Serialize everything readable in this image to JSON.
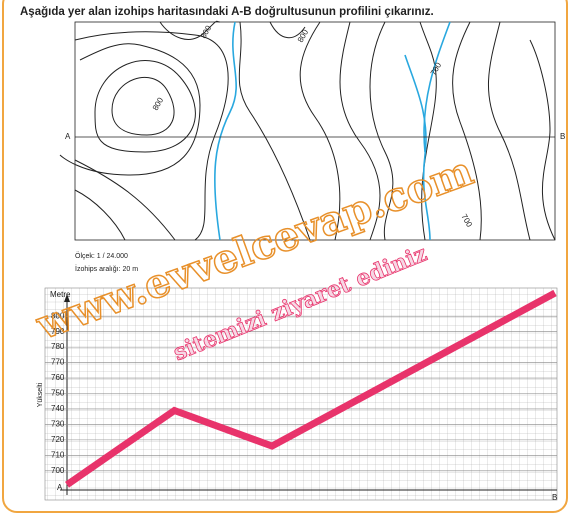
{
  "header": {
    "title": "Aşağıda yer alan izohips haritasındaki A-B doğrultusunun profilini çıkarınız."
  },
  "map": {
    "point_a": "A",
    "point_b": "B",
    "contour_labels": [
      "800",
      "800",
      "800",
      "700",
      "700"
    ],
    "scale": "Ölçek: 1 / 24.000",
    "interval": "İzohips aralığı: 20 m"
  },
  "watermark": [
    "www.evvelcevap.com",
    "sitemizi ziyaret ediniz"
  ],
  "chart_data": {
    "type": "line",
    "y_label": "Metre",
    "y_axis_title": "Yükselti",
    "x_start_label": "A",
    "x_end_label": "B",
    "x": [
      0,
      22,
      42,
      100
    ],
    "values": [
      691,
      739,
      716,
      815
    ],
    "color": "#e8336b",
    "xlim": [
      0,
      100
    ],
    "ylim": [
      685,
      815
    ],
    "yticks": [
      700,
      710,
      720,
      730,
      740,
      750,
      760,
      770,
      780,
      790,
      800
    ],
    "grid": true
  }
}
